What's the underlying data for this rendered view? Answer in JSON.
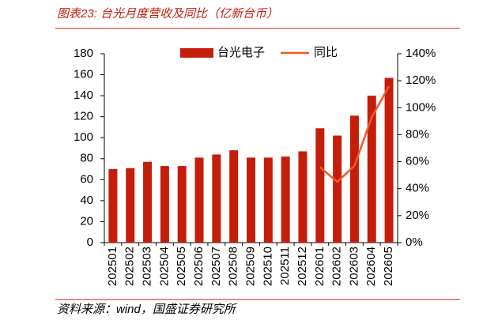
{
  "chart_data": {
    "type": "bar_line",
    "title": "图表23:  台光月度营收及同比（亿新台币）",
    "source": "资料来源：wind，国盛证券研究所",
    "categories": [
      "202501",
      "202502",
      "202503",
      "202504",
      "202505",
      "202506",
      "202507",
      "202508",
      "202509",
      "202510",
      "202511",
      "202512",
      "202601",
      "202602",
      "202603",
      "202604",
      "202605"
    ],
    "series": [
      {
        "name": "台光电子",
        "color": "#c41d0b",
        "values": [
          70,
          71,
          77,
          73,
          73,
          81,
          84,
          88,
          81,
          81,
          82,
          87,
          109,
          102,
          121,
          140,
          157
        ]
      },
      {
        "name": "同比",
        "color": "#f05a24",
        "axis": "y2",
        "values": [
          null,
          null,
          null,
          null,
          null,
          null,
          null,
          null,
          null,
          null,
          null,
          null,
          56,
          45,
          57,
          93,
          116
        ]
      }
    ],
    "ylim": [
      0,
      180
    ],
    "yticks": [
      0,
      20,
      40,
      60,
      80,
      100,
      120,
      140,
      160,
      180
    ],
    "y2lim": [
      0,
      140
    ],
    "y2ticks": [
      {
        "value": 0,
        "label": "0%"
      },
      {
        "value": 20,
        "label": "20%"
      },
      {
        "value": 40,
        "label": "40%"
      },
      {
        "value": 60,
        "label": "60%"
      },
      {
        "value": 80,
        "label": "80%"
      },
      {
        "value": 100,
        "label": "100%"
      },
      {
        "value": 120,
        "label": "120%"
      },
      {
        "value": 140,
        "label": "140%"
      }
    ],
    "grid": false
  }
}
